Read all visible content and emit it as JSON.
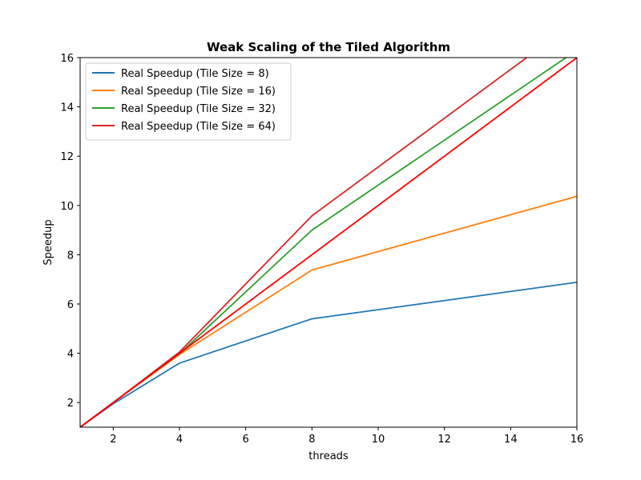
{
  "chart_data": {
    "type": "line",
    "title": "Weak Scaling of the Tiled Algorithm",
    "xlabel": "threads",
    "ylabel": "Speedup",
    "xlim": [
      1,
      16
    ],
    "ylim": [
      1,
      16
    ],
    "xticks": [
      2,
      4,
      6,
      8,
      10,
      12,
      14,
      16
    ],
    "yticks": [
      2,
      4,
      6,
      8,
      10,
      12,
      14,
      16
    ],
    "grid": false,
    "legend_position": "top-left",
    "series": [
      {
        "name": "Real Speedup (Tile Size = 8)",
        "color": "#1f77b4",
        "x": [
          1,
          2,
          4,
          8,
          16
        ],
        "y": [
          1,
          1.95,
          3.6,
          5.4,
          6.88
        ],
        "in_legend": true
      },
      {
        "name": "Real Speedup (Tile Size = 16)",
        "color": "#ff7f0e",
        "x": [
          1,
          2,
          4,
          8,
          16
        ],
        "y": [
          1,
          2,
          3.95,
          7.38,
          10.37
        ],
        "in_legend": true
      },
      {
        "name": "Real Speedup (Tile Size = 32)",
        "color": "#2ca02c",
        "x": [
          1,
          2,
          4,
          8,
          16
        ],
        "y": [
          1,
          2,
          3.98,
          9.0,
          16.3
        ],
        "in_legend": true
      },
      {
        "name": "Real Speedup (Tile Size = 64)",
        "color": "#d62728",
        "x": [
          1,
          2,
          4,
          8,
          16
        ],
        "y": [
          1,
          2,
          4.05,
          9.58,
          17.5
        ],
        "in_legend": true
      },
      {
        "name": "",
        "color": "#ff0000",
        "x": [
          1,
          16
        ],
        "y": [
          1,
          16
        ],
        "in_legend": false
      }
    ]
  }
}
